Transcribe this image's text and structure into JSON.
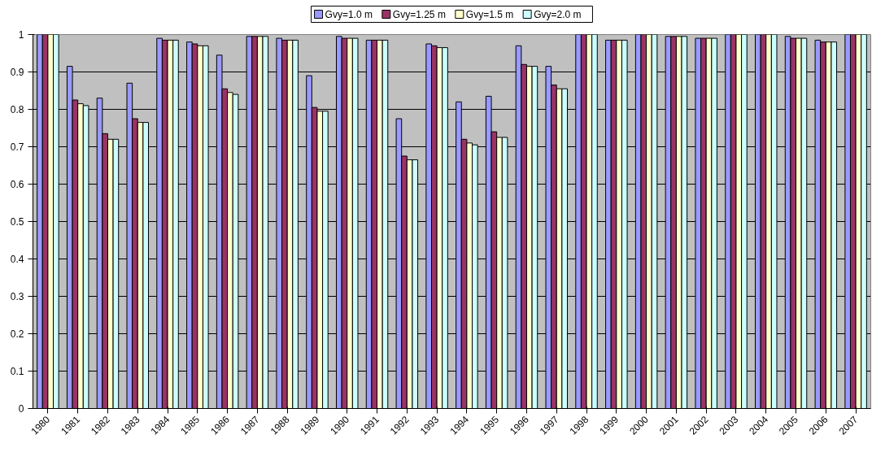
{
  "chart_data": {
    "type": "bar",
    "categories": [
      "1980",
      "1981",
      "1982",
      "1983",
      "1984",
      "1985",
      "1986",
      "1987",
      "1988",
      "1989",
      "1990",
      "1991",
      "1992",
      "1993",
      "1994",
      "1995",
      "1996",
      "1997",
      "1998",
      "1999",
      "2000",
      "2001",
      "2002",
      "2003",
      "2004",
      "2005",
      "2006",
      "2007"
    ],
    "series": [
      {
        "name": "Gvy=1.0 m",
        "color": "#9999ff",
        "values": [
          1.0,
          0.915,
          0.83,
          0.87,
          0.99,
          0.98,
          0.945,
          0.995,
          0.99,
          0.89,
          0.995,
          0.985,
          0.775,
          0.975,
          0.82,
          0.835,
          0.97,
          0.915,
          1.0,
          0.985,
          1.0,
          0.995,
          0.99,
          1.0,
          1.0,
          0.995,
          0.985,
          1.0
        ]
      },
      {
        "name": "Gvy=1.25 m",
        "color": "#993366",
        "values": [
          1.0,
          0.825,
          0.735,
          0.775,
          0.985,
          0.975,
          0.855,
          0.995,
          0.985,
          0.805,
          0.99,
          0.985,
          0.675,
          0.97,
          0.72,
          0.74,
          0.92,
          0.865,
          1.0,
          0.985,
          1.0,
          0.995,
          0.99,
          1.0,
          1.0,
          0.99,
          0.98,
          1.0
        ]
      },
      {
        "name": "Gvy=1.5 m",
        "color": "#ffffcc",
        "values": [
          1.0,
          0.815,
          0.72,
          0.765,
          0.985,
          0.97,
          0.845,
          0.995,
          0.985,
          0.795,
          0.99,
          0.985,
          0.665,
          0.965,
          0.71,
          0.725,
          0.915,
          0.855,
          1.0,
          0.985,
          1.0,
          0.995,
          0.99,
          1.0,
          1.0,
          0.99,
          0.98,
          1.0
        ]
      },
      {
        "name": "Gvy=2.0 m",
        "color": "#ccffff",
        "values": [
          1.0,
          0.81,
          0.72,
          0.765,
          0.985,
          0.97,
          0.84,
          0.995,
          0.985,
          0.795,
          0.99,
          0.985,
          0.665,
          0.965,
          0.705,
          0.725,
          0.915,
          0.855,
          1.0,
          0.985,
          1.0,
          0.995,
          0.99,
          1.0,
          1.0,
          0.99,
          0.98,
          1.0
        ]
      }
    ],
    "ylim": [
      0,
      1
    ],
    "yticks": [
      0,
      0.1,
      0.2,
      0.3,
      0.4,
      0.5,
      0.6,
      0.7,
      0.8,
      0.9,
      1
    ],
    "grid": "y",
    "legend": "top"
  }
}
